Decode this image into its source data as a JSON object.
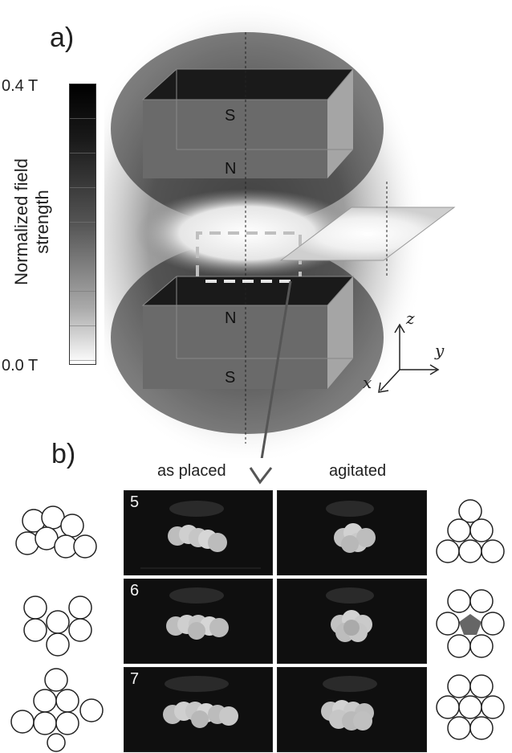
{
  "panel_a": {
    "label": "a)",
    "colorbar": {
      "max_label": "0.4 T",
      "min_label": "0.0 T",
      "title_line1": "Normalized field",
      "title_line2": "strength"
    },
    "magnets": {
      "top": {
        "upper_pole": "S",
        "lower_pole": "N"
      },
      "bottom": {
        "upper_pole": "N",
        "lower_pole": "S"
      }
    },
    "axes": {
      "z": "z",
      "y": "y",
      "x": "x"
    }
  },
  "panel_b": {
    "label": "b)",
    "col_left": "as placed",
    "col_right": "agitated",
    "rows": [
      {
        "count": "5"
      },
      {
        "count": "6"
      },
      {
        "count": "7"
      }
    ]
  },
  "colors": {
    "magnet_face": "#6a6a6a",
    "magnet_top": "#1a1a1a",
    "magnet_side": "#a5a5a5",
    "gap_highlight": "#888888"
  }
}
